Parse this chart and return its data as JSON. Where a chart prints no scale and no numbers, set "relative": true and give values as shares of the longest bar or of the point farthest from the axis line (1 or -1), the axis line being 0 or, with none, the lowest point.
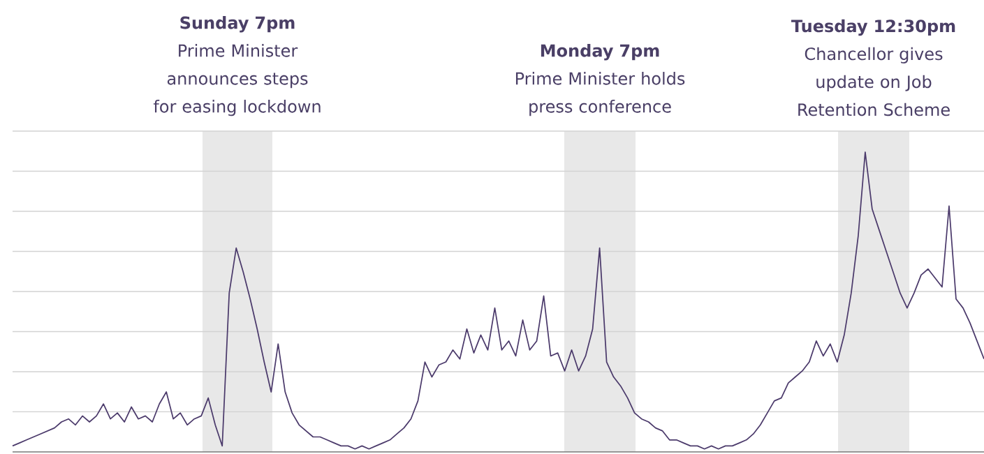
{
  "chart_data": {
    "type": "line",
    "relative": true,
    "grid": "y",
    "categories": [
      null,
      null,
      null,
      null,
      null,
      null,
      null,
      null,
      null,
      null,
      null,
      null,
      null,
      null,
      null,
      null,
      null,
      null,
      null,
      null,
      null,
      null,
      null,
      null,
      null,
      null,
      null,
      null,
      null,
      null,
      null,
      null,
      null,
      null,
      null,
      null,
      null,
      null,
      null,
      null,
      null,
      null,
      null,
      null,
      null,
      null,
      null,
      null,
      null,
      null,
      null,
      null,
      null,
      null,
      null,
      null,
      null,
      null,
      null,
      null,
      null,
      null,
      null,
      null,
      null,
      null,
      null,
      null,
      null,
      null,
      null,
      null,
      null,
      null,
      null,
      null,
      null,
      null,
      null,
      null,
      null,
      null,
      null,
      null,
      null,
      null,
      null,
      null,
      null,
      null,
      null,
      null,
      null,
      null,
      null,
      null,
      null,
      null,
      null,
      null,
      null,
      null,
      null,
      null,
      null,
      null,
      null,
      null,
      null,
      null,
      null,
      null,
      null,
      null,
      null,
      null,
      null,
      null,
      null,
      null,
      null,
      null,
      null,
      null,
      null,
      null,
      null,
      null,
      null,
      null,
      null,
      null,
      null,
      null,
      null,
      null,
      null,
      null,
      null,
      null
    ],
    "series": [
      {
        "color": "#4b3a6b",
        "values": [
          0.02,
          0.03,
          0.04,
          0.05,
          0.06,
          0.07,
          0.08,
          0.1,
          0.11,
          0.09,
          0.12,
          0.1,
          0.12,
          0.16,
          0.11,
          0.13,
          0.1,
          0.15,
          0.11,
          0.12,
          0.1,
          0.16,
          0.2,
          0.11,
          0.13,
          0.09,
          0.11,
          0.12,
          0.18,
          0.09,
          0.02,
          0.53,
          0.68,
          0.6,
          0.51,
          0.41,
          0.3,
          0.2,
          0.36,
          0.2,
          0.13,
          0.09,
          0.07,
          0.05,
          0.05,
          0.04,
          0.03,
          0.02,
          0.02,
          0.01,
          0.02,
          0.01,
          0.02,
          0.03,
          0.04,
          0.06,
          0.08,
          0.11,
          0.17,
          0.3,
          0.25,
          0.29,
          0.3,
          0.34,
          0.31,
          0.41,
          0.33,
          0.39,
          0.34,
          0.48,
          0.34,
          0.37,
          0.32,
          0.44,
          0.34,
          0.37,
          0.52,
          0.32,
          0.33,
          0.27,
          0.34,
          0.27,
          0.32,
          0.41,
          0.68,
          0.3,
          0.25,
          0.22,
          0.18,
          0.13,
          0.11,
          0.1,
          0.08,
          0.07,
          0.04,
          0.04,
          0.03,
          0.02,
          0.02,
          0.01,
          0.02,
          0.01,
          0.02,
          0.02,
          0.03,
          0.04,
          0.06,
          0.09,
          0.13,
          0.17,
          0.18,
          0.23,
          0.25,
          0.27,
          0.3,
          0.37,
          0.32,
          0.36,
          0.3,
          0.39,
          0.53,
          0.72,
          1.0,
          0.81,
          0.74,
          0.67,
          0.6,
          0.53,
          0.48,
          0.53,
          0.59,
          0.61,
          0.58,
          0.55,
          0.82,
          0.51,
          0.48,
          0.43,
          0.37,
          0.31
        ]
      }
    ],
    "annotations": [
      "**Sunday 7pm** Prime Minister announces steps for easing lockdown",
      "**Monday 7pm** Prime Minister holds press conference",
      "**Tuesday 12:30pm** Chancellor gives update on Job Retention Scheme"
    ]
  }
}
